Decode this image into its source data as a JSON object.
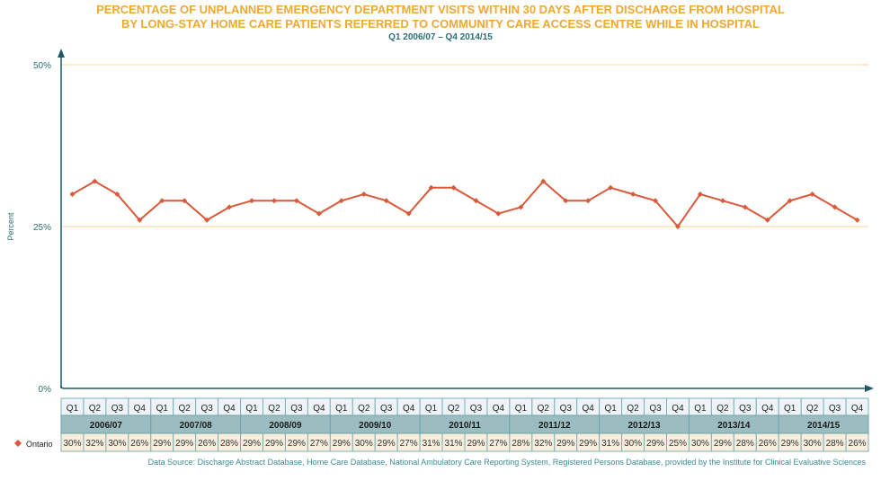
{
  "chart_data": {
    "type": "line",
    "title": "PERCENTAGE OF UNPLANNED EMERGENCY DEPARTMENT VISITS WITHIN 30 DAYS AFTER DISCHARGE FROM HOSPITAL",
    "title_line2": "BY LONG-STAY HOME CARE PATIENTS REFERRED TO COMMUNITY CARE ACCESS CENTRE WHILE IN HOSPITAL",
    "subtitle": "Q1 2006/07 – Q4 2014/15",
    "ylabel": "Percent",
    "ylim": [
      0,
      50
    ],
    "yticks": [
      "0%",
      "25%",
      "50%"
    ],
    "grid": true,
    "quarters": [
      "Q1",
      "Q2",
      "Q3",
      "Q4"
    ],
    "years": [
      "2006/07",
      "2007/08",
      "2008/09",
      "2009/10",
      "2010/11",
      "2011/12",
      "2012/13",
      "2013/14",
      "2014/15"
    ],
    "series": [
      {
        "name": "Ontario",
        "color": "#d9593a",
        "values": [
          30,
          32,
          30,
          26,
          29,
          29,
          26,
          28,
          29,
          29,
          29,
          27,
          29,
          30,
          29,
          27,
          31,
          31,
          29,
          27,
          28,
          32,
          29,
          29,
          31,
          30,
          29,
          25,
          30,
          29,
          28,
          26,
          29,
          30,
          28,
          26
        ]
      }
    ],
    "legend_placement": "left of data table"
  },
  "source": "Data Source:  Discharge Abstract Database, Home Care Database, National Ambulatory Care Reporting System, Registered Persons Database, provided by the Institute for Clinical Evaluative Sciences"
}
